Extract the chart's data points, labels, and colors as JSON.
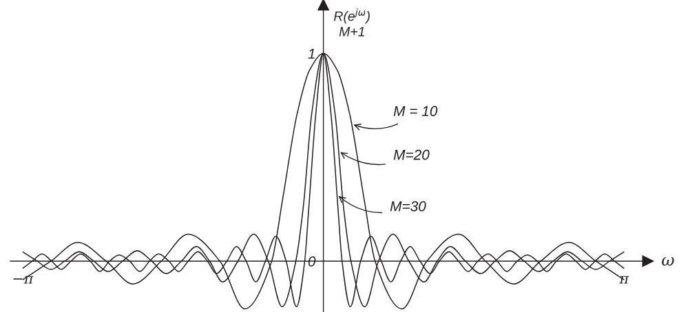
{
  "chart_data": {
    "type": "line",
    "ylim": [
      -0.245,
      1.235
    ],
    "yticks": [
      0,
      1
    ],
    "xlabel": "ω",
    "ylabel": "R(e$^{jω}$)\nM+1",
    "xlim": [
      -3.27,
      3.39
    ],
    "xticks": [
      {
        "value": -3.1416,
        "label": "−π"
      },
      {
        "value": 3.1416,
        "label": "π"
      }
    ],
    "legend": "center",
    "grid": false,
    "marker": "none",
    "line_style": "solid",
    "series": [
      {
        "name": "M = 10",
        "color": "#231f20",
        "x": [
          -3.1416,
          -2.846,
          -2.565,
          -2.27,
          -1.989,
          -1.693,
          -1.412,
          -1.081,
          -0.821,
          -0.54,
          -0.425,
          -0.274,
          -0.144,
          0,
          0.144,
          0.274,
          0.425,
          0.54,
          0.821,
          1.081,
          1.412,
          1.693,
          1.989,
          2.27,
          2.565,
          2.846,
          3.1416
        ],
        "values": [
          -0.09,
          0,
          0.09,
          0,
          -0.11,
          0,
          0.13,
          0,
          -0.23,
          0,
          0.3,
          0.71,
          0.92,
          1,
          0.92,
          0.71,
          0.3,
          0,
          -0.23,
          0,
          0.13,
          0,
          -0.11,
          0,
          0.09,
          0,
          -0.09
        ]
      },
      {
        "name": "M=20",
        "color": "#231f20",
        "x": [
          -3.1416,
          -2.99,
          -2.846,
          -2.702,
          -2.551,
          -2.399,
          -2.248,
          -2.097,
          -1.945,
          -1.794,
          -1.643,
          -1.484,
          -1.326,
          -1.189,
          -1.052,
          -0.893,
          -0.728,
          -0.576,
          -0.432,
          -0.288,
          -0.209,
          -0.122,
          0,
          0.122,
          0.209,
          0.288,
          0.432,
          0.576,
          0.728,
          0.893,
          1.052,
          1.189,
          1.326,
          1.484,
          1.643,
          1.794,
          1.945,
          2.097,
          2.248,
          2.399,
          2.551,
          2.702,
          2.846,
          2.99,
          3.1416
        ],
        "values": [
          0.045,
          0,
          -0.04,
          0,
          0.045,
          0,
          -0.05,
          0,
          0.05,
          0,
          -0.06,
          0,
          0.07,
          0,
          -0.1,
          0,
          0.13,
          0,
          -0.22,
          0,
          0.265,
          0.71,
          1,
          0.71,
          0.265,
          0,
          -0.22,
          0,
          0.13,
          0,
          -0.1,
          0,
          0.07,
          0,
          -0.06,
          0,
          0.05,
          0,
          -0.05,
          0,
          0.045,
          0,
          -0.04,
          0,
          0.045
        ]
      },
      {
        "name": "M=30",
        "color": "#231f20",
        "x": [
          -3.1416,
          -3.041,
          -2.94,
          -2.839,
          -2.738,
          -2.637,
          -2.536,
          -2.435,
          -2.335,
          -2.234,
          -2.133,
          -2.025,
          -1.917,
          -1.816,
          -1.722,
          -1.614,
          -1.513,
          -1.412,
          -1.311,
          -1.211,
          -1.117,
          -1.009,
          -0.908,
          -0.807,
          -0.706,
          -0.605,
          -0.497,
          -0.389,
          -0.281,
          -0.195,
          -0.151,
          -0.079,
          0,
          0.079,
          0.151,
          0.195,
          0.281,
          0.389,
          0.497,
          0.605,
          0.706,
          0.807,
          0.908,
          1.009,
          1.117,
          1.211,
          1.311,
          1.412,
          1.513,
          1.614,
          1.722,
          1.816,
          1.917,
          2.025,
          2.133,
          2.234,
          2.335,
          2.435,
          2.536,
          2.637,
          2.738,
          2.839,
          2.94,
          3.041,
          3.1416
        ],
        "values": [
          -0.035,
          0,
          0.035,
          0,
          -0.04,
          0,
          0.035,
          0,
          -0.05,
          0,
          0.03,
          0,
          -0.05,
          0,
          0.035,
          0,
          -0.05,
          0,
          0.045,
          0,
          -0.06,
          0,
          0.07,
          0,
          -0.1,
          0,
          0.12,
          0,
          -0.22,
          0,
          0.265,
          0.71,
          1,
          0.71,
          0.265,
          0,
          -0.22,
          0,
          0.12,
          0,
          -0.1,
          0,
          0.07,
          0,
          -0.06,
          0,
          0.045,
          0,
          -0.05,
          0,
          0.035,
          0,
          -0.05,
          0,
          0.03,
          0,
          -0.05,
          0,
          0.035,
          0,
          -0.04,
          0,
          0.035,
          0,
          -0.035
        ]
      }
    ]
  }
}
